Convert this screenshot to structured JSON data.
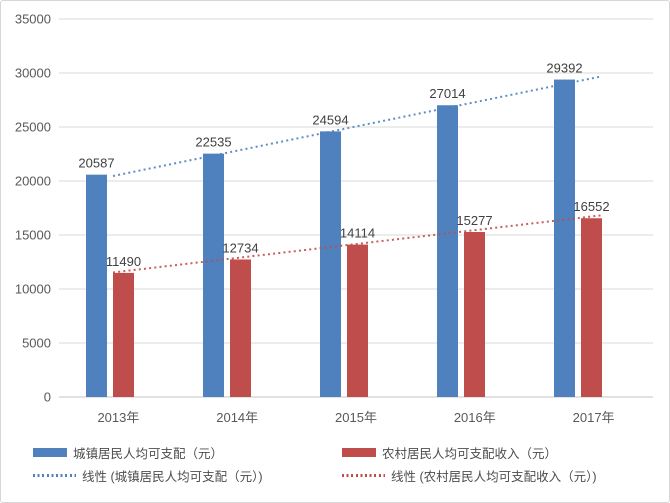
{
  "chart_data": {
    "type": "bar",
    "categories": [
      "2013年",
      "2014年",
      "2015年",
      "2016年",
      "2017年"
    ],
    "series": [
      {
        "name": "城镇居民人均可支配（元）",
        "values": [
          20587,
          22535,
          24594,
          27014,
          29392
        ],
        "color": "#4E81BD"
      },
      {
        "name": "农村居民人均可支配收入（元）",
        "values": [
          11490,
          12734,
          14114,
          15277,
          16552
        ],
        "color": "#BF4D4B"
      }
    ],
    "trendlines": [
      {
        "name": "线性 (城镇居民人均可支配（元）)",
        "series_index": 0,
        "style": "dotted",
        "color": "#4E81BD"
      },
      {
        "name": "线性 (农村居民人均可支配收入（元）)",
        "series_index": 1,
        "style": "dotted",
        "color": "#BF4D4B"
      }
    ],
    "ylim": [
      0,
      35000
    ],
    "ytick_step": 5000,
    "yticks": [
      "0",
      "5000",
      "10000",
      "15000",
      "20000",
      "25000",
      "30000",
      "35000"
    ],
    "grid": true,
    "data_labels": true,
    "legend_position": "bottom"
  },
  "style_colors": {
    "gridline": "#D9D9D9",
    "axis_line": "#C6C6C6",
    "axis_text": "#595959",
    "data_label_text": "#404040",
    "legend_text": "#4D4D4D",
    "background": "#FFFFFF",
    "border": "#D7D7D7"
  }
}
